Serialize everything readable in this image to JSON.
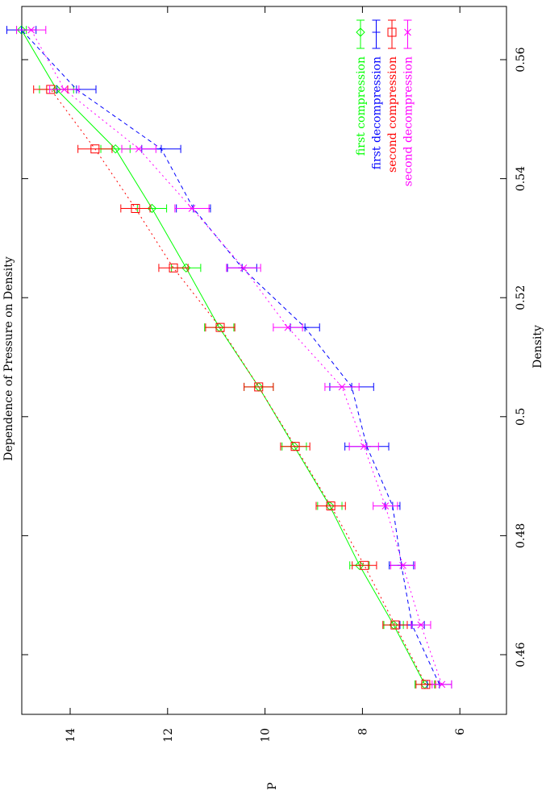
{
  "chart_data": {
    "type": "line",
    "title": "Dependence of Pressure on Density",
    "xlabel": "Density",
    "ylabel": "P",
    "xlim": [
      0.45,
      0.569
    ],
    "ylim": [
      5,
      15
    ],
    "x_ticks": [
      "0.46",
      "0.48",
      "0.5",
      "0.52",
      "0.54",
      "0.56"
    ],
    "y_ticks": [
      "6",
      "8",
      "10",
      "12",
      "14"
    ],
    "grid": false,
    "legend_position": "top-right",
    "orientation": "rotated 90 degrees on the page",
    "series": [
      {
        "name": "first compression",
        "color": "#00ff00",
        "marker": "diamond",
        "line": "solid",
        "x": [
          0.455,
          0.465,
          0.475,
          0.485,
          0.495,
          0.505,
          0.515,
          0.525,
          0.535,
          0.545,
          0.555,
          0.565
        ],
        "y": [
          6.72,
          7.36,
          8.06,
          8.67,
          9.4,
          10.13,
          10.94,
          11.62,
          12.32,
          13.07,
          14.28,
          15.0
        ],
        "err": [
          0.2,
          0.2,
          0.2,
          0.25,
          0.25,
          0.3,
          0.3,
          0.3,
          0.3,
          0.3,
          0.35,
          0.1
        ]
      },
      {
        "name": "first decompression",
        "color": "#0000ff",
        "marker": "plus",
        "line": "dashed",
        "x": [
          0.455,
          0.465,
          0.475,
          0.485,
          0.495,
          0.505,
          0.515,
          0.525,
          0.535,
          0.545,
          0.555,
          0.565
        ],
        "y": [
          6.42,
          6.98,
          7.2,
          7.38,
          7.91,
          8.22,
          9.18,
          10.47,
          11.47,
          12.13,
          13.87,
          15.0
        ],
        "err": [
          0.25,
          0.25,
          0.25,
          0.15,
          0.45,
          0.45,
          0.3,
          0.3,
          0.35,
          0.4,
          0.4,
          0.3
        ]
      },
      {
        "name": "second compression",
        "color": "#ff0000",
        "marker": "square",
        "line": "dotted",
        "x": [
          0.455,
          0.465,
          0.475,
          0.485,
          0.495,
          0.505,
          0.515,
          0.525,
          0.535,
          0.545,
          0.555
        ],
        "y": [
          6.7,
          7.33,
          7.96,
          8.65,
          9.38,
          10.13,
          10.92,
          11.88,
          12.66,
          13.49,
          14.4
        ],
        "err": [
          0.2,
          0.25,
          0.25,
          0.3,
          0.3,
          0.3,
          0.3,
          0.3,
          0.3,
          0.35,
          0.35
        ]
      },
      {
        "name": "second decompression",
        "color": "#ff00ff",
        "marker": "cross",
        "line": "dotted",
        "x": [
          0.455,
          0.465,
          0.475,
          0.485,
          0.495,
          0.505,
          0.515,
          0.525,
          0.535,
          0.545,
          0.555,
          0.565
        ],
        "y": [
          6.37,
          6.8,
          7.17,
          7.53,
          7.97,
          8.42,
          9.53,
          10.44,
          11.5,
          12.59,
          14.12,
          14.8
        ],
        "err": [
          0.2,
          0.2,
          0.25,
          0.25,
          0.3,
          0.35,
          0.3,
          0.35,
          0.35,
          0.35,
          0.3,
          0.3
        ]
      }
    ]
  }
}
